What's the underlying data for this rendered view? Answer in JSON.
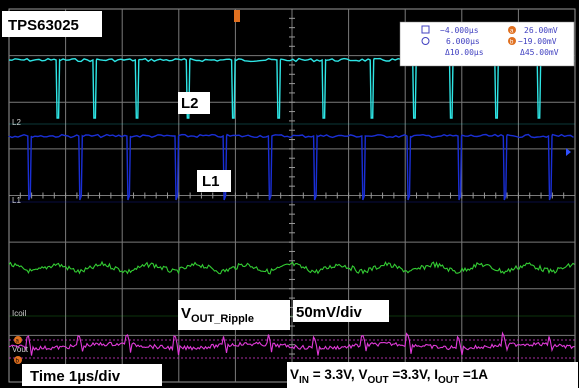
{
  "chart_data": {
    "type": "line",
    "title": "TPS63025",
    "time_per_div": "Time 1µs/div",
    "volts_per_div_label": "50mV/div",
    "conditions": {
      "vin_sym": "V",
      "vin_sub": "IN",
      "vin_val": " = 3.3V, ",
      "vout_sym": "V",
      "vout_sub": "OUT",
      "vout_val": " =3.3V, ",
      "iout_sym": "I",
      "iout_sub": "OUT",
      "iout_val": " =1A"
    },
    "grid": true,
    "x_divisions": 10,
    "y_divisions": 8,
    "colors": {
      "l2": "#2ee6e6",
      "l1": "#1a2fd6",
      "icoil": "#33cc33",
      "vout": "#e03ad8",
      "cursor": "#e07020"
    },
    "series": [
      {
        "name": "L2",
        "marker": "L2",
        "spike_times_us": [
          0.85,
          1.5,
          2.25,
          3.15,
          3.95,
          4.75,
          5.55,
          6.4,
          7.15,
          7.8,
          8.6,
          9.35
        ]
      },
      {
        "name": "L1",
        "marker": "L1",
        "spike_times_us": [
          0.35,
          1.25,
          2.1,
          2.95,
          3.8,
          4.6,
          5.4,
          6.25,
          7.05,
          7.95,
          8.75,
          9.55
        ]
      },
      {
        "name": "Icoil",
        "marker": "Icoil"
      },
      {
        "name": "V_OUT_Ripple",
        "marker": "Vout",
        "label_main": "V",
        "label_sub": "OUT_Ripple"
      }
    ],
    "cursors": {
      "t1": "−4.000µs",
      "t2": "6.000µs",
      "dt": "Δ10.00µs",
      "v1": "26.00mV",
      "v2": "−19.00mV",
      "dv": "Δ45.00mV",
      "a_mark": "a",
      "b_mark": "b"
    }
  }
}
